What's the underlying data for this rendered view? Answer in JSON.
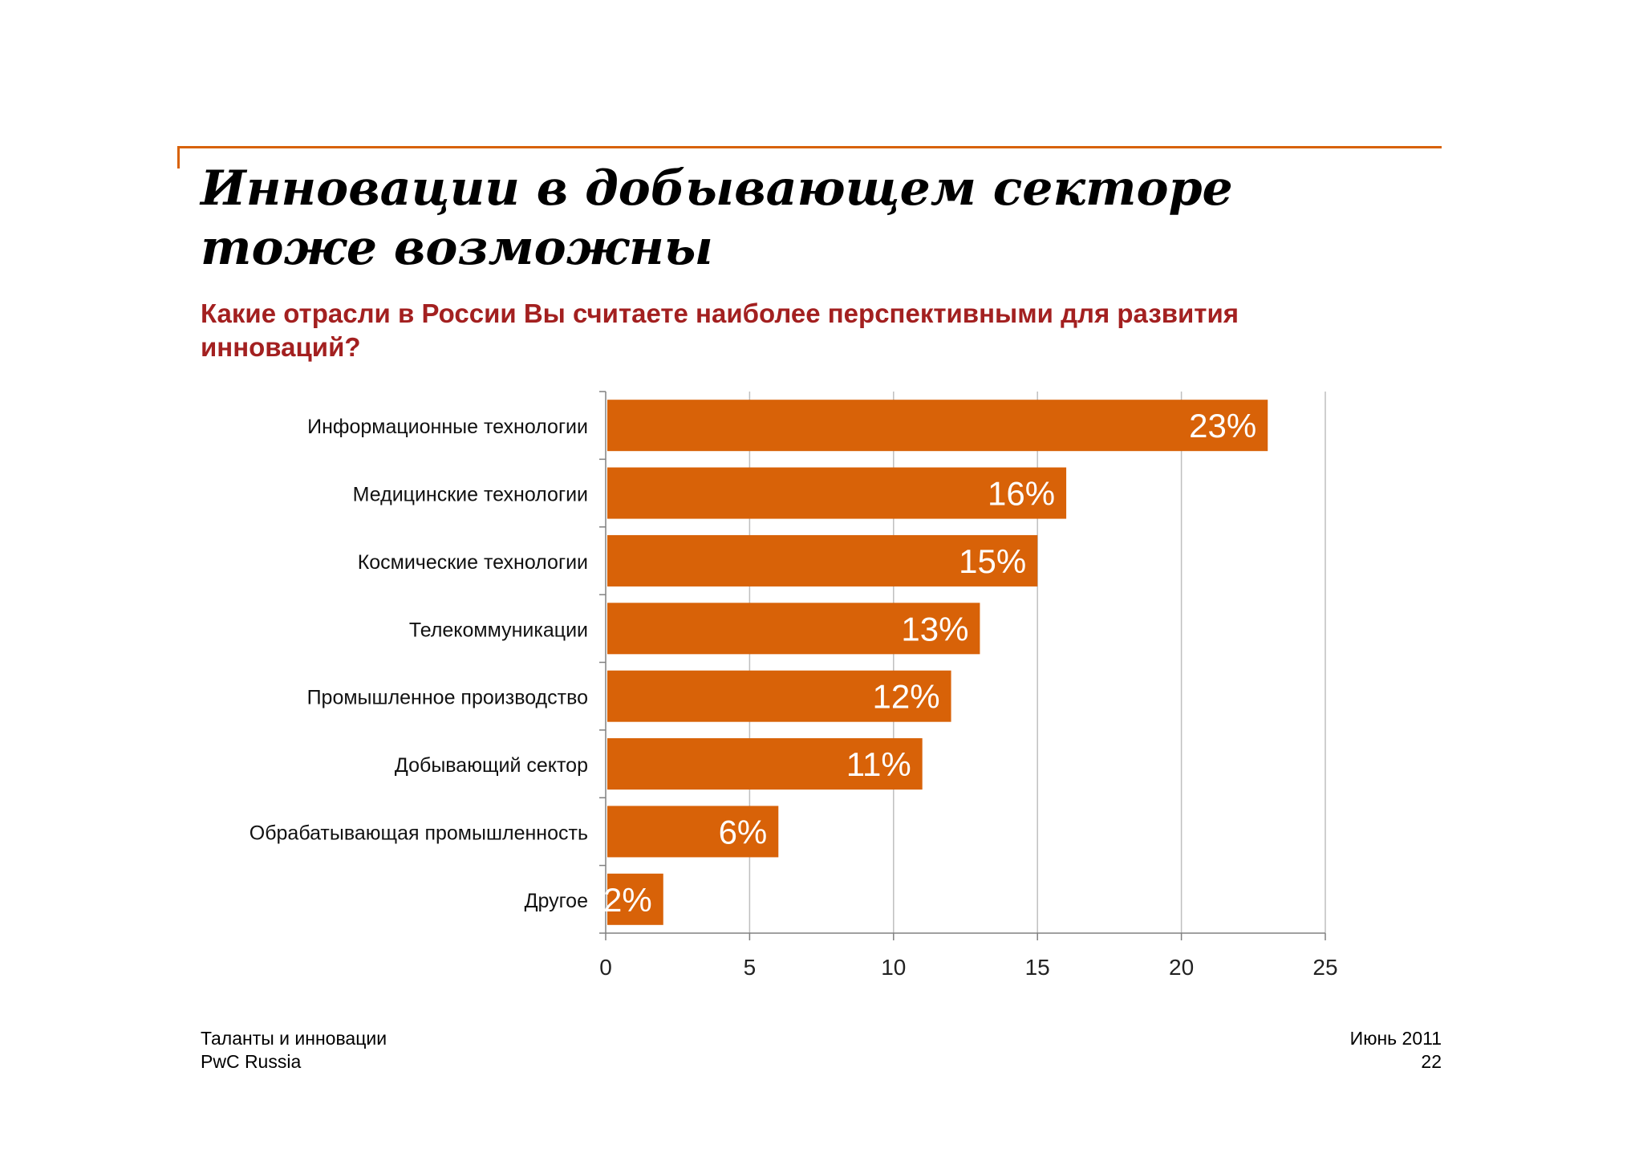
{
  "slide": {
    "title": "Инновации в добывающем секторе тоже возможны",
    "question": "Какие отрасли в России Вы считаете наиболее перспективными для развития инноваций?"
  },
  "footer": {
    "left_line1": "Таланты и инновации",
    "left_line2": "PwC Russia",
    "date": "Июнь 2011",
    "page_number": "22"
  },
  "colors": {
    "bar": "#d86208",
    "accent_rule": "#d86208",
    "question_text": "#a32020",
    "bar_label": "#ffffff",
    "gridline": "#bfbfbf"
  },
  "chart_data": {
    "type": "bar",
    "orientation": "horizontal",
    "categories": [
      "Информационные технологии",
      "Медицинские технологии",
      "Космические технологии",
      "Телекоммуникации",
      "Промышленное производство",
      "Добывающий сектор",
      "Обрабатывающая промышленность",
      "Другое"
    ],
    "values": [
      23,
      16,
      15,
      13,
      12,
      11,
      6,
      2
    ],
    "data_labels": [
      "23%",
      "16%",
      "15%",
      "13%",
      "12%",
      "11%",
      "6%",
      "2%"
    ],
    "x_ticks": [
      0,
      5,
      10,
      15,
      20,
      25
    ],
    "xlim": [
      0,
      25
    ],
    "grid": true,
    "legend": "none"
  }
}
